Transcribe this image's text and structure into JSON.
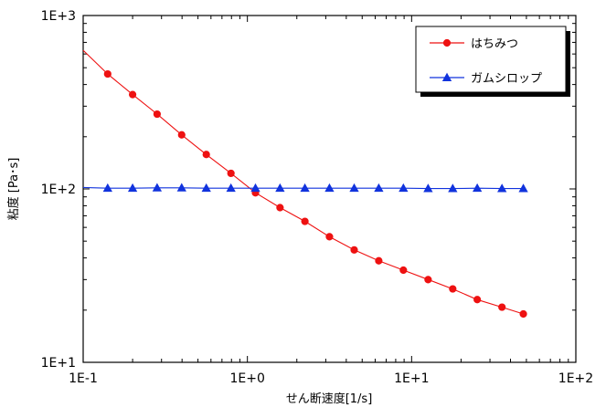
{
  "chart_data": {
    "type": "line",
    "title": "",
    "xlabel": "せん断速度[1/s]",
    "ylabel": "粘度 [Pa･s]",
    "x_scale": "log",
    "y_scale": "log",
    "xlim": [
      0.1,
      100
    ],
    "ylim": [
      10,
      1000
    ],
    "x_ticks": [
      "1E-1",
      "1E+0",
      "1E+1",
      "1E+2"
    ],
    "y_ticks": [
      "1E+1",
      "1E+2",
      "1E+3"
    ],
    "grid": false,
    "legend_position": "top-right",
    "series": [
      {
        "name": "はちみつ",
        "color": "#ee1111",
        "marker": "circle",
        "x": [
          0.1,
          0.141,
          0.2,
          0.282,
          0.398,
          0.562,
          0.794,
          1.12,
          1.58,
          2.24,
          3.16,
          4.47,
          6.31,
          8.91,
          12.6,
          17.8,
          25.1,
          35.5,
          47.9
        ],
        "y": [
          630,
          460,
          350,
          270,
          205,
          158,
          123,
          95,
          78,
          65,
          53,
          44.5,
          38.5,
          34,
          30,
          26.5,
          23,
          20.8,
          19
        ],
        "marker_from_index": 1
      },
      {
        "name": "ガムシロップ",
        "color": "#1133dd",
        "marker": "triangle",
        "x": [
          0.1,
          0.141,
          0.2,
          0.282,
          0.398,
          0.562,
          0.794,
          1.12,
          1.58,
          2.24,
          3.16,
          4.47,
          6.31,
          8.91,
          12.6,
          17.8,
          25.1,
          35.5,
          47.9
        ],
        "y": [
          102,
          101,
          101,
          101.5,
          101.5,
          101,
          101,
          101,
          101,
          101,
          101,
          101,
          101,
          101,
          100.5,
          100.5,
          101,
          100.5,
          100.5
        ],
        "marker_from_index": 1
      }
    ]
  }
}
